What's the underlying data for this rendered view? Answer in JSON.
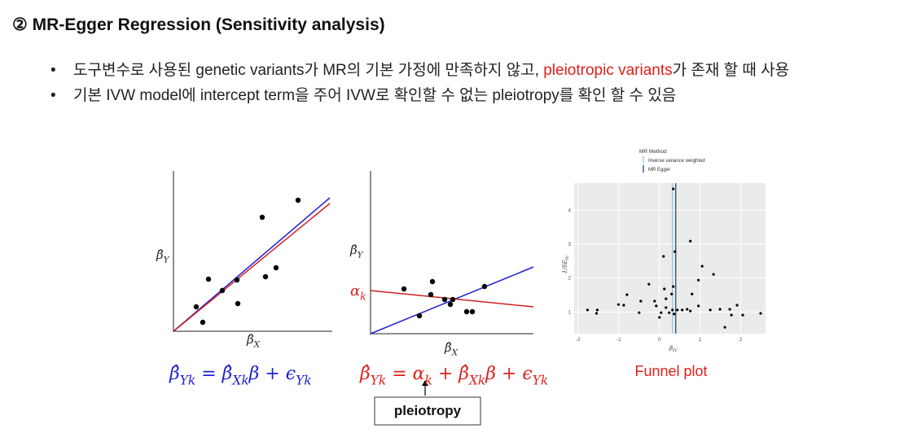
{
  "title": "② MR-Egger Regression (Sensitivity analysis)",
  "bullets": [
    [
      "도구변수로 사용된 genetic variants가 MR의 기본 가정에 만족하지 않고, ",
      "pleiotropic variants",
      "가 존재 할 때 사용"
    ],
    [
      "기본 IVW model에 intercept term을 주어 IVW로 확인할 수 없는 pleiotropy를 확인 할 수 있음"
    ]
  ],
  "plot1": {
    "y_label": {
      "t": "β̂",
      "sub": "Y"
    },
    "x_label": {
      "t": "β̂",
      "sub": "X"
    },
    "equation": [
      {
        "t": "β̂",
        "sub": "Yk"
      },
      {
        "t": " = "
      },
      {
        "t": "β̂",
        "sub": "Xk"
      },
      {
        "t": "β + "
      },
      {
        "t": "ϵ",
        "sub": "Yk"
      }
    ]
  },
  "plot2": {
    "y_label": {
      "t": "β̂",
      "sub": "Y"
    },
    "x_label": {
      "t": "β̂",
      "sub": "X"
    },
    "intercept_label": {
      "t": "α",
      "sub": "k"
    },
    "equation": [
      {
        "t": "β̂",
        "sub": "Yk"
      },
      {
        "t": " = "
      },
      {
        "t": "α",
        "sub": "k"
      },
      {
        "t": " + "
      },
      {
        "t": "β̂",
        "sub": "Xk"
      },
      {
        "t": "β + "
      },
      {
        "t": "ϵ",
        "sub": "Yk"
      }
    ],
    "callout": "pleiotropy"
  },
  "funnel": {
    "legend_title": "MR Method",
    "lines": [
      {
        "name": "Inverse variance weighted",
        "value": 0.32,
        "color": "#9ec5e0"
      },
      {
        "name": "MR Egger",
        "value": 0.4,
        "color": "#1f4e79"
      }
    ],
    "x": [
      0.34,
      0.76,
      0.38,
      0.1,
      1.05,
      0.96,
      1.33,
      -0.26,
      0.34,
      0.12,
      0.3,
      -0.8,
      0.8,
      -0.12,
      0.16,
      -0.46,
      -1.77,
      -1.53,
      -1.55,
      -1.01,
      -0.88,
      -0.08,
      0.16,
      0.32,
      0.44,
      0.56,
      0.68,
      -0.5,
      0.04,
      0.24,
      0.36,
      0.96,
      1.25,
      1.49,
      1.73,
      1.91,
      1.77,
      2.05,
      2.49,
      1.61,
      0.0,
      0.76
    ],
    "y": [
      4.63,
      3.09,
      2.78,
      2.64,
      2.35,
      1.94,
      2.11,
      1.82,
      1.75,
      1.68,
      1.53,
      1.51,
      1.53,
      1.32,
      1.39,
      1.32,
      1.06,
      1.06,
      0.96,
      1.22,
      1.2,
      1.18,
      1.13,
      1.06,
      1.06,
      1.06,
      1.08,
      0.98,
      0.98,
      0.98,
      0.94,
      1.18,
      1.06,
      1.08,
      1.08,
      1.2,
      0.91,
      0.91,
      0.96,
      0.55,
      0.84,
      1.03
    ],
    "xlim": [
      -2.1,
      2.61
    ],
    "ylim": [
      0.36,
      4.8
    ],
    "xticks": [
      -2,
      -1,
      0,
      1,
      2
    ],
    "yticks": [
      1,
      2,
      3,
      4
    ],
    "x_label": {
      "t": "β",
      "sub": "IV"
    },
    "y_label": {
      "t": "1/SE",
      "sub": "IV"
    },
    "caption": "Funnel plot"
  }
}
